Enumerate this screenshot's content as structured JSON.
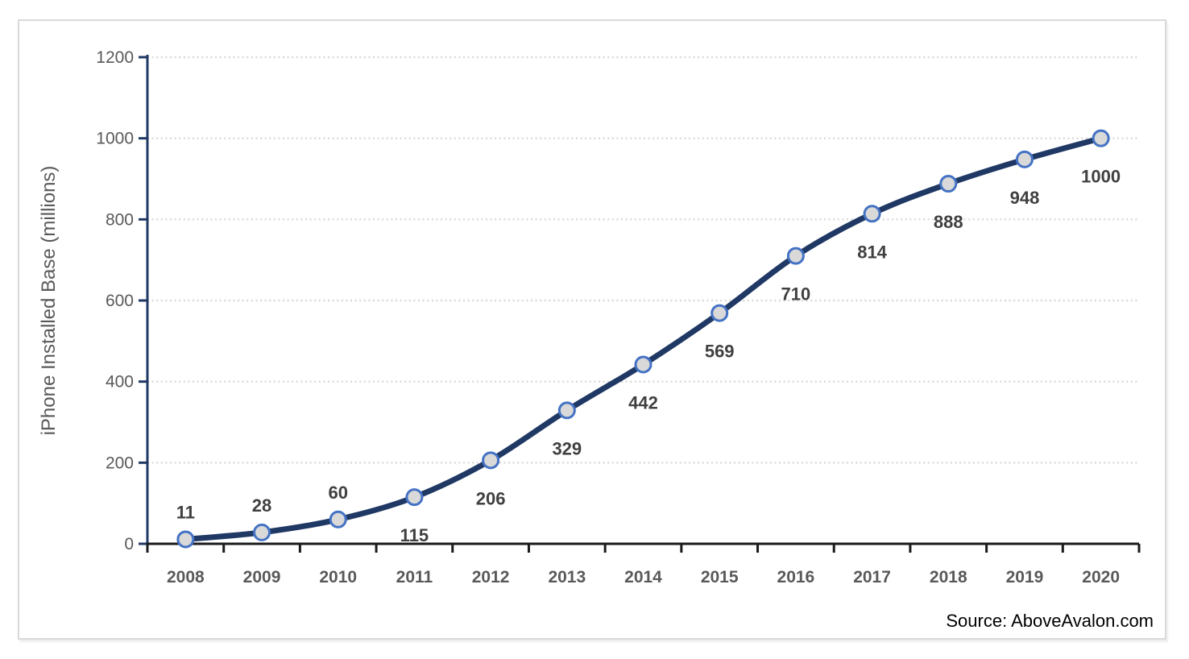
{
  "chart_data": {
    "type": "line",
    "title": "",
    "xlabel": "",
    "ylabel": "iPhone Installed Base (millions)",
    "categories": [
      "2008",
      "2009",
      "2010",
      "2011",
      "2012",
      "2013",
      "2014",
      "2015",
      "2016",
      "2017",
      "2018",
      "2019",
      "2020"
    ],
    "values": [
      11,
      28,
      60,
      115,
      206,
      329,
      442,
      569,
      710,
      814,
      888,
      948,
      1000
    ],
    "data_label_positions": [
      "above",
      "above",
      "above",
      "below",
      "below",
      "below",
      "below",
      "below",
      "below",
      "below",
      "below",
      "below",
      "below"
    ],
    "ylim": [
      0,
      1200
    ],
    "yticks": [
      0,
      200,
      400,
      600,
      800,
      1000,
      1200
    ],
    "grid": "horizontal dotted",
    "legend_position": "none",
    "smooth_line": true,
    "source": "Source: AboveAvalon.com",
    "colors": {
      "line": "#1F3864",
      "marker_fill": "#D9D9D9",
      "marker_border": "#4472C4",
      "gridline": "#D8D8D8",
      "y_axis": "#1F3864",
      "x_axis": "#1A1A1A",
      "axis_tick_labels": "#595959",
      "data_labels": "#404040",
      "frame_border": "#D9D9D9",
      "source_text": "#000000"
    }
  }
}
